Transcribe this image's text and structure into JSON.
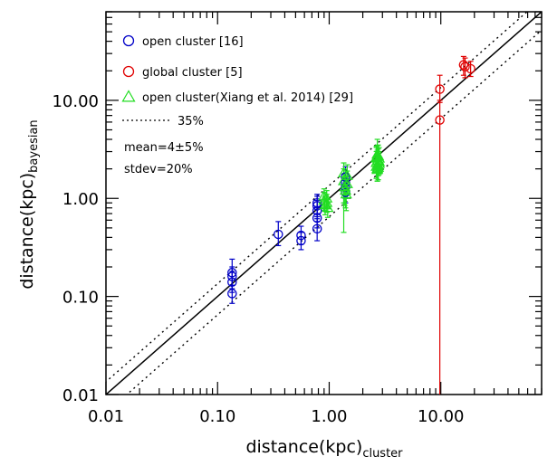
{
  "chart_data": {
    "type": "scatter",
    "xlabel": "distance(kpc)",
    "xlabel_sub": "cluster",
    "ylabel": "distance(kpc)",
    "ylabel_sub": "bayesian",
    "xscale": "log",
    "yscale": "log",
    "xlim": [
      0.01,
      80
    ],
    "ylim": [
      0.01,
      80
    ],
    "x_ticks": [
      0.01,
      0.1,
      1,
      10
    ],
    "y_ticks": [
      0.01,
      0.1,
      1,
      10
    ],
    "x_tick_labels": [
      "0.01",
      "0.10",
      "1.00",
      "10.00"
    ],
    "y_tick_labels": [
      "0.01",
      "0.10",
      "1.00",
      "10.00"
    ],
    "legend_position": "top-left",
    "grid": false,
    "lines": [
      {
        "label": "",
        "style": "solid",
        "factor": 1.0
      },
      {
        "label": "35%",
        "style": "dotted",
        "factor": 1.35
      },
      {
        "label": "",
        "style": "dotted",
        "factor": 0.65
      }
    ],
    "annotations": [
      "mean=4±5%",
      "stdev=20%"
    ],
    "series": [
      {
        "name": "open cluster [16]",
        "color": "#0000c8",
        "marker": "circle",
        "points": [
          {
            "x": 0.135,
            "y": 0.175,
            "lo": 0.13,
            "hi": 0.24
          },
          {
            "x": 0.135,
            "y": 0.16,
            "lo": 0.12,
            "hi": 0.2
          },
          {
            "x": 0.135,
            "y": 0.14,
            "lo": 0.11,
            "hi": 0.18
          },
          {
            "x": 0.135,
            "y": 0.107,
            "lo": 0.085,
            "hi": 0.13
          },
          {
            "x": 0.35,
            "y": 0.43,
            "lo": 0.33,
            "hi": 0.58
          },
          {
            "x": 0.56,
            "y": 0.42,
            "lo": 0.34,
            "hi": 0.52
          },
          {
            "x": 0.56,
            "y": 0.37,
            "lo": 0.3,
            "hi": 0.45
          },
          {
            "x": 0.78,
            "y": 0.9,
            "lo": 0.7,
            "hi": 1.1
          },
          {
            "x": 0.78,
            "y": 0.84,
            "lo": 0.65,
            "hi": 1.05
          },
          {
            "x": 0.78,
            "y": 0.75,
            "lo": 0.58,
            "hi": 0.95
          },
          {
            "x": 0.78,
            "y": 0.63,
            "lo": 0.5,
            "hi": 0.8
          },
          {
            "x": 0.78,
            "y": 0.49,
            "lo": 0.37,
            "hi": 0.62
          },
          {
            "x": 1.4,
            "y": 1.65,
            "lo": 1.3,
            "hi": 2.1
          },
          {
            "x": 1.4,
            "y": 1.45,
            "lo": 1.15,
            "hi": 1.8
          },
          {
            "x": 1.4,
            "y": 1.3,
            "lo": 1.0,
            "hi": 1.65
          },
          {
            "x": 1.4,
            "y": 1.15,
            "lo": 0.9,
            "hi": 1.45
          }
        ]
      },
      {
        "name": "global cluster [5]",
        "color": "#e00000",
        "marker": "circle",
        "points": [
          {
            "x": 9.8,
            "y": 13.0,
            "lo": 9.5,
            "hi": 18.0
          },
          {
            "x": 9.8,
            "y": 6.3,
            "lo": 0.01,
            "hi": 10.0
          },
          {
            "x": 16.0,
            "y": 23.0,
            "lo": 18.0,
            "hi": 28.0
          },
          {
            "x": 16.5,
            "y": 22.0,
            "lo": 17.0,
            "hi": 27.0
          },
          {
            "x": 18.5,
            "y": 21.0,
            "lo": 17.5,
            "hi": 25.0
          }
        ]
      },
      {
        "name": "open cluster(Xiang et al. 2014) [29]",
        "color": "#22dd22",
        "marker": "triangle",
        "points": [
          {
            "x": 0.9,
            "y": 1.05,
            "lo": 0.8,
            "hi": 1.25
          },
          {
            "x": 0.9,
            "y": 0.95,
            "lo": 0.75,
            "hi": 1.15
          },
          {
            "x": 0.92,
            "y": 0.85,
            "lo": 0.68,
            "hi": 1.05
          },
          {
            "x": 0.95,
            "y": 1.0,
            "lo": 0.8,
            "hi": 1.2
          },
          {
            "x": 0.95,
            "y": 0.9,
            "lo": 0.72,
            "hi": 1.1
          },
          {
            "x": 0.97,
            "y": 0.8,
            "lo": 0.64,
            "hi": 0.98
          },
          {
            "x": 1.35,
            "y": 1.8,
            "lo": 0.45,
            "hi": 2.3
          },
          {
            "x": 1.35,
            "y": 1.5,
            "lo": 0.9,
            "hi": 2.0
          },
          {
            "x": 1.38,
            "y": 1.3,
            "lo": 0.85,
            "hi": 1.8
          },
          {
            "x": 1.4,
            "y": 1.2,
            "lo": 0.8,
            "hi": 1.7
          },
          {
            "x": 1.42,
            "y": 1.1,
            "lo": 0.75,
            "hi": 1.6
          },
          {
            "x": 1.45,
            "y": 1.7,
            "lo": 1.2,
            "hi": 2.2
          },
          {
            "x": 1.45,
            "y": 1.4,
            "lo": 1.0,
            "hi": 1.9
          },
          {
            "x": 2.65,
            "y": 2.6,
            "lo": 2.0,
            "hi": 3.4
          },
          {
            "x": 2.65,
            "y": 2.3,
            "lo": 1.6,
            "hi": 3.0
          },
          {
            "x": 2.7,
            "y": 2.0,
            "lo": 1.5,
            "hi": 2.7
          },
          {
            "x": 2.7,
            "y": 2.8,
            "lo": 2.1,
            "hi": 4.0
          },
          {
            "x": 2.75,
            "y": 2.45,
            "lo": 1.9,
            "hi": 3.2
          },
          {
            "x": 2.75,
            "y": 2.15,
            "lo": 1.7,
            "hi": 2.8
          },
          {
            "x": 2.8,
            "y": 2.55,
            "lo": 2.0,
            "hi": 3.3
          },
          {
            "x": 2.8,
            "y": 2.25,
            "lo": 1.75,
            "hi": 2.9
          },
          {
            "x": 2.7,
            "y": 2.4,
            "lo": 1.85,
            "hi": 3.1
          },
          {
            "x": 2.65,
            "y": 2.1,
            "lo": 1.6,
            "hi": 2.7
          },
          {
            "x": 2.75,
            "y": 2.7,
            "lo": 2.1,
            "hi": 3.5
          },
          {
            "x": 2.7,
            "y": 1.95,
            "lo": 1.5,
            "hi": 2.5
          },
          {
            "x": 2.8,
            "y": 2.35,
            "lo": 1.8,
            "hi": 3.0
          },
          {
            "x": 2.65,
            "y": 2.55,
            "lo": 1.95,
            "hi": 3.3
          },
          {
            "x": 2.75,
            "y": 2.05,
            "lo": 1.55,
            "hi": 2.65
          },
          {
            "x": 2.7,
            "y": 2.65,
            "lo": 2.05,
            "hi": 3.45
          }
        ]
      }
    ]
  }
}
